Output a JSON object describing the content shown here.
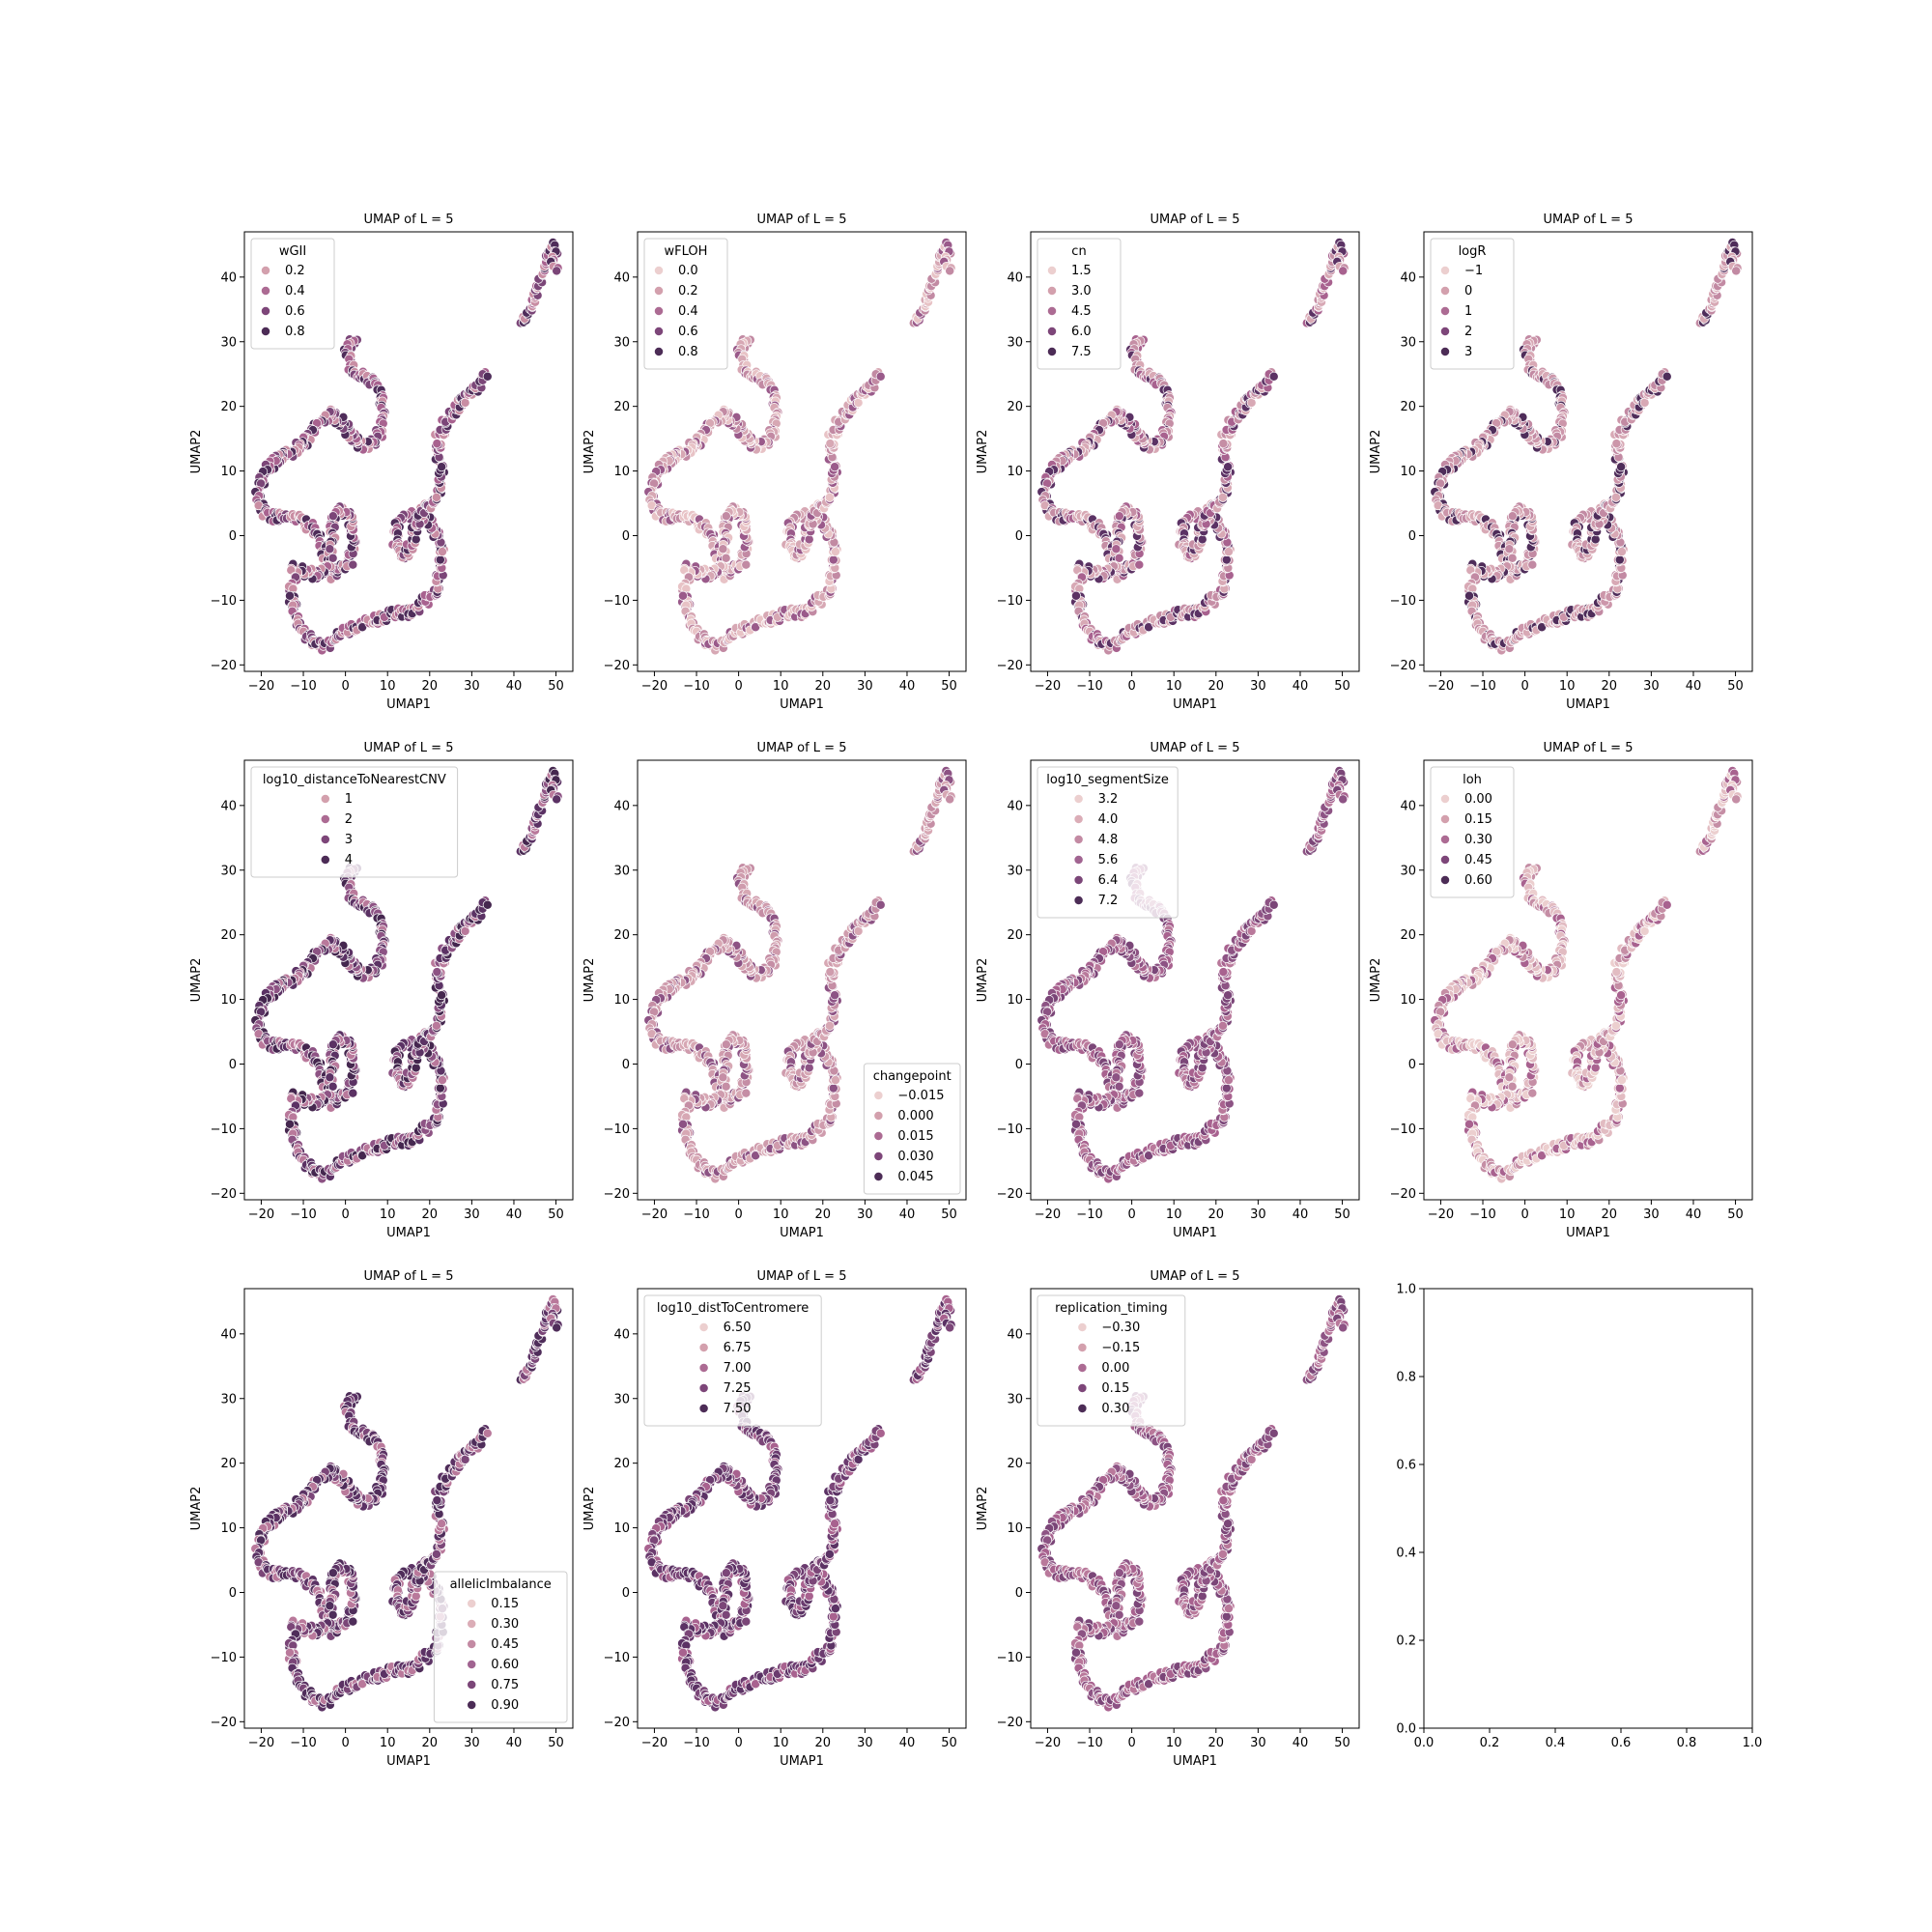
{
  "figure": {
    "title": ""
  },
  "chart_data": [
    {
      "type": "scatter",
      "title": "UMAP of L = 5",
      "xlabel": "UMAP1",
      "ylabel": "UMAP2",
      "xlim": [
        -24,
        54
      ],
      "ylim": [
        -21,
        47
      ],
      "xticks": [
        "−20",
        "−10",
        "0",
        "10",
        "20",
        "30",
        "40",
        "50"
      ],
      "yticks": [
        "−20",
        "−10",
        "0",
        "10",
        "20",
        "30",
        "40"
      ],
      "legend_title": "wGII",
      "legend_labels": [
        "0.2",
        "0.4",
        "0.6",
        "0.8"
      ],
      "legend_colors": [
        "#d3a0ad",
        "#ac6b93",
        "#7d4679",
        "#4c2c56"
      ],
      "legend_position": "upper-left",
      "palette": [
        "#c98da3",
        "#a8628f",
        "#7b4678",
        "#4f2d5a"
      ]
    },
    {
      "type": "scatter",
      "title": "UMAP of L = 5",
      "xlabel": "UMAP1",
      "ylabel": "UMAP2",
      "xlim": [
        -24,
        54
      ],
      "ylim": [
        -21,
        47
      ],
      "xticks": [
        "−20",
        "−10",
        "0",
        "10",
        "20",
        "30",
        "40",
        "50"
      ],
      "yticks": [
        "−20",
        "−10",
        "0",
        "10",
        "20",
        "30",
        "40"
      ],
      "legend_title": "wFLOH",
      "legend_labels": [
        "0.0",
        "0.2",
        "0.4",
        "0.6",
        "0.8"
      ],
      "legend_colors": [
        "#eccfcf",
        "#d3a0ad",
        "#ac6b93",
        "#7d4679",
        "#4c2c56"
      ],
      "legend_position": "upper-left",
      "palette": [
        "#e8c3c6",
        "#d7a8b4",
        "#c28aa3",
        "#9a5a8a"
      ]
    },
    {
      "type": "scatter",
      "title": "UMAP of L = 5",
      "xlabel": "UMAP1",
      "ylabel": "UMAP2",
      "xlim": [
        -24,
        54
      ],
      "ylim": [
        -21,
        47
      ],
      "xticks": [
        "−20",
        "−10",
        "0",
        "10",
        "20",
        "30",
        "40",
        "50"
      ],
      "yticks": [
        "−20",
        "−10",
        "0",
        "10",
        "20",
        "30",
        "40"
      ],
      "legend_title": "cn",
      "legend_labels": [
        "1.5",
        "3.0",
        "4.5",
        "6.0",
        "7.5"
      ],
      "legend_colors": [
        "#eccfcf",
        "#d3a0ad",
        "#ac6b93",
        "#7d4679",
        "#4c2c56"
      ],
      "legend_position": "upper-left",
      "palette": [
        "#d8a9b5",
        "#c58ea5",
        "#a8628f",
        "#5b3264"
      ]
    },
    {
      "type": "scatter",
      "title": "UMAP of L = 5",
      "xlabel": "UMAP1",
      "ylabel": "UMAP2",
      "xlim": [
        -24,
        54
      ],
      "ylim": [
        -21,
        47
      ],
      "xticks": [
        "−20",
        "−10",
        "0",
        "10",
        "20",
        "30",
        "40",
        "50"
      ],
      "yticks": [
        "−20",
        "−10",
        "0",
        "10",
        "20",
        "30",
        "40"
      ],
      "legend_title": "logR",
      "legend_labels": [
        "−1",
        "0",
        "1",
        "2",
        "3"
      ],
      "legend_colors": [
        "#eccfcf",
        "#d3a0ad",
        "#ac6b93",
        "#7d4679",
        "#4c2c56"
      ],
      "legend_position": "upper-left",
      "palette": [
        "#d8a9b5",
        "#cc96aa",
        "#c28aa3",
        "#4f2d5a"
      ]
    },
    {
      "type": "scatter",
      "title": "UMAP of L = 5",
      "xlabel": "UMAP1",
      "ylabel": "UMAP2",
      "xlim": [
        -24,
        54
      ],
      "ylim": [
        -21,
        47
      ],
      "xticks": [
        "−20",
        "−10",
        "0",
        "10",
        "20",
        "30",
        "40",
        "50"
      ],
      "yticks": [
        "−20",
        "−10",
        "0",
        "10",
        "20",
        "30",
        "40"
      ],
      "legend_title": "log10_distanceToNearestCNV",
      "legend_labels": [
        "1",
        "2",
        "3",
        "4"
      ],
      "legend_colors": [
        "#d3a0ad",
        "#ac6b93",
        "#7d4679",
        "#4c2c56"
      ],
      "legend_position": "upper-left",
      "palette": [
        "#b9799b",
        "#8d5384",
        "#5b3264",
        "#45274f"
      ]
    },
    {
      "type": "scatter",
      "title": "UMAP of L = 5",
      "xlabel": "UMAP1",
      "ylabel": "UMAP2",
      "xlim": [
        -24,
        54
      ],
      "ylim": [
        -21,
        47
      ],
      "xticks": [
        "−20",
        "−10",
        "0",
        "10",
        "20",
        "30",
        "40",
        "50"
      ],
      "yticks": [
        "−20",
        "−10",
        "0",
        "10",
        "20",
        "30",
        "40"
      ],
      "legend_title": "changepoint",
      "legend_labels": [
        "−0.015",
        "0.000",
        "0.015",
        "0.030",
        "0.045"
      ],
      "legend_colors": [
        "#eccfcf",
        "#d3a0ad",
        "#ac6b93",
        "#7d4679",
        "#4c2c56"
      ],
      "legend_position": "lower-right",
      "palette": [
        "#d7a8b4",
        "#cf9cad",
        "#c58ea5",
        "#8d5384"
      ]
    },
    {
      "type": "scatter",
      "title": "UMAP of L = 5",
      "xlabel": "UMAP1",
      "ylabel": "UMAP2",
      "xlim": [
        -24,
        54
      ],
      "ylim": [
        -21,
        47
      ],
      "xticks": [
        "−20",
        "−10",
        "0",
        "10",
        "20",
        "30",
        "40",
        "50"
      ],
      "yticks": [
        "−20",
        "−10",
        "0",
        "10",
        "20",
        "30",
        "40"
      ],
      "legend_title": "log10_segmentSize",
      "legend_labels": [
        "3.2",
        "4.0",
        "4.8",
        "5.6",
        "6.4",
        "7.2"
      ],
      "legend_colors": [
        "#eccfcf",
        "#dbadb7",
        "#c38aa3",
        "#a16491",
        "#7b4678",
        "#4c2c56"
      ],
      "legend_position": "upper-left",
      "palette": [
        "#b9799b",
        "#a8628f",
        "#8d5384",
        "#7b4678"
      ]
    },
    {
      "type": "scatter",
      "title": "UMAP of L = 5",
      "xlabel": "UMAP1",
      "ylabel": "UMAP2",
      "xlim": [
        -24,
        54
      ],
      "ylim": [
        -21,
        47
      ],
      "xticks": [
        "−20",
        "−10",
        "0",
        "10",
        "20",
        "30",
        "40",
        "50"
      ],
      "yticks": [
        "−20",
        "−10",
        "0",
        "10",
        "20",
        "30",
        "40"
      ],
      "legend_title": "loh",
      "legend_labels": [
        "0.00",
        "0.15",
        "0.30",
        "0.45",
        "0.60"
      ],
      "legend_colors": [
        "#eccfcf",
        "#d3a0ad",
        "#ac6b93",
        "#7d4679",
        "#4c2c56"
      ],
      "legend_position": "upper-left",
      "palette": [
        "#eccfcf",
        "#e2bcc2",
        "#c58ea5",
        "#a8628f"
      ]
    },
    {
      "type": "scatter",
      "title": "UMAP of L = 5",
      "xlabel": "UMAP1",
      "ylabel": "UMAP2",
      "xlim": [
        -24,
        54
      ],
      "ylim": [
        -21,
        47
      ],
      "xticks": [
        "−20",
        "−10",
        "0",
        "10",
        "20",
        "30",
        "40",
        "50"
      ],
      "yticks": [
        "−20",
        "−10",
        "0",
        "10",
        "20",
        "30",
        "40"
      ],
      "legend_title": "allelicImbalance",
      "legend_labels": [
        "0.15",
        "0.30",
        "0.45",
        "0.60",
        "0.75",
        "0.90"
      ],
      "legend_colors": [
        "#eccfcf",
        "#dbadb7",
        "#c38aa3",
        "#a16491",
        "#7b4678",
        "#4c2c56"
      ],
      "legend_position": "lower-right",
      "palette": [
        "#7b4678",
        "#5b3264",
        "#4f2d5a",
        "#b9799b"
      ]
    },
    {
      "type": "scatter",
      "title": "UMAP of L = 5",
      "xlabel": "UMAP1",
      "ylabel": "UMAP2",
      "xlim": [
        -24,
        54
      ],
      "ylim": [
        -21,
        47
      ],
      "xticks": [
        "−20",
        "−10",
        "0",
        "10",
        "20",
        "30",
        "40",
        "50"
      ],
      "yticks": [
        "−20",
        "−10",
        "0",
        "10",
        "20",
        "30",
        "40"
      ],
      "legend_title": "log10_distToCentromere",
      "legend_labels": [
        "6.50",
        "6.75",
        "7.00",
        "7.25",
        "7.50"
      ],
      "legend_colors": [
        "#eccfcf",
        "#d3a0ad",
        "#ac6b93",
        "#7d4679",
        "#4c2c56"
      ],
      "legend_position": "upper-left",
      "palette": [
        "#5b3264",
        "#6b3b6f",
        "#7b4678",
        "#a8628f"
      ]
    },
    {
      "type": "scatter",
      "title": "UMAP of L = 5",
      "xlabel": "UMAP1",
      "ylabel": "UMAP2",
      "xlim": [
        -24,
        54
      ],
      "ylim": [
        -21,
        47
      ],
      "xticks": [
        "−20",
        "−10",
        "0",
        "10",
        "20",
        "30",
        "40",
        "50"
      ],
      "yticks": [
        "−20",
        "−10",
        "0",
        "10",
        "20",
        "30",
        "40"
      ],
      "legend_title": "replication_timing",
      "legend_labels": [
        "−0.30",
        "−0.15",
        "0.00",
        "0.15",
        "0.30"
      ],
      "legend_colors": [
        "#eccfcf",
        "#d3a0ad",
        "#ac6b93",
        "#7d4679",
        "#4c2c56"
      ],
      "legend_position": "upper-left",
      "palette": [
        "#b9799b",
        "#a8628f",
        "#8d5384",
        "#7b4678"
      ]
    },
    {
      "type": "empty",
      "title": "",
      "xlim": [
        0,
        1
      ],
      "ylim": [
        0,
        1
      ],
      "xticks": [
        "0.0",
        "0.2",
        "0.4",
        "0.6",
        "0.8",
        "1.0"
      ],
      "yticks": [
        "0.0",
        "0.2",
        "0.4",
        "0.6",
        "0.8",
        "1.0"
      ]
    }
  ],
  "umap_curve": {
    "main_path": [
      [
        2,
        30
      ],
      [
        0,
        29
      ],
      [
        2,
        25
      ],
      [
        6,
        24
      ],
      [
        8,
        23
      ],
      [
        9,
        20
      ],
      [
        8,
        16
      ],
      [
        6,
        14
      ],
      [
        3,
        14
      ],
      [
        0,
        17
      ],
      [
        -3,
        19
      ],
      [
        -6,
        18
      ],
      [
        -8,
        16
      ],
      [
        -10,
        14
      ],
      [
        -13,
        13
      ],
      [
        -16,
        12
      ],
      [
        -19,
        10
      ],
      [
        -21,
        7
      ],
      [
        -20,
        4
      ],
      [
        -17,
        3
      ],
      [
        -13,
        3
      ],
      [
        -9,
        2
      ],
      [
        -6,
        0
      ],
      [
        -5,
        -3
      ],
      [
        -4,
        -6
      ],
      [
        -1,
        -5
      ],
      [
        1,
        -4
      ],
      [
        2,
        -1
      ],
      [
        1,
        3
      ],
      [
        -1,
        4
      ],
      [
        -3,
        3
      ],
      [
        -3,
        -1
      ],
      [
        -4,
        -5
      ],
      [
        -8,
        -6
      ],
      [
        -12,
        -5
      ],
      [
        -13,
        -9
      ],
      [
        -12,
        -12
      ],
      [
        -10,
        -15
      ],
      [
        -7,
        -17
      ],
      [
        -4,
        -17
      ],
      [
        -1,
        -15
      ],
      [
        3,
        -14
      ],
      [
        7,
        -13
      ],
      [
        11,
        -12
      ],
      [
        15,
        -12
      ],
      [
        19,
        -10
      ],
      [
        22,
        -8
      ],
      [
        23,
        -4
      ],
      [
        22,
        0
      ],
      [
        20,
        2
      ],
      [
        17,
        3
      ],
      [
        14,
        3
      ],
      [
        12,
        1
      ],
      [
        12,
        -2
      ],
      [
        14,
        -3
      ],
      [
        16,
        -1
      ],
      [
        17,
        2
      ],
      [
        18,
        4
      ],
      [
        21,
        5
      ],
      [
        23,
        8
      ],
      [
        22,
        12
      ],
      [
        22,
        15
      ],
      [
        24,
        18
      ],
      [
        27,
        20
      ],
      [
        30,
        22
      ],
      [
        33,
        25
      ]
    ],
    "island_path": [
      [
        42,
        33
      ],
      [
        44,
        35
      ],
      [
        45,
        37
      ],
      [
        46,
        39
      ],
      [
        47,
        41
      ],
      [
        48,
        43
      ],
      [
        49,
        45
      ],
      [
        50,
        44
      ],
      [
        49,
        42
      ],
      [
        50,
        41
      ]
    ],
    "x": [
      -21,
      50
    ],
    "y": [
      -17,
      45
    ]
  }
}
